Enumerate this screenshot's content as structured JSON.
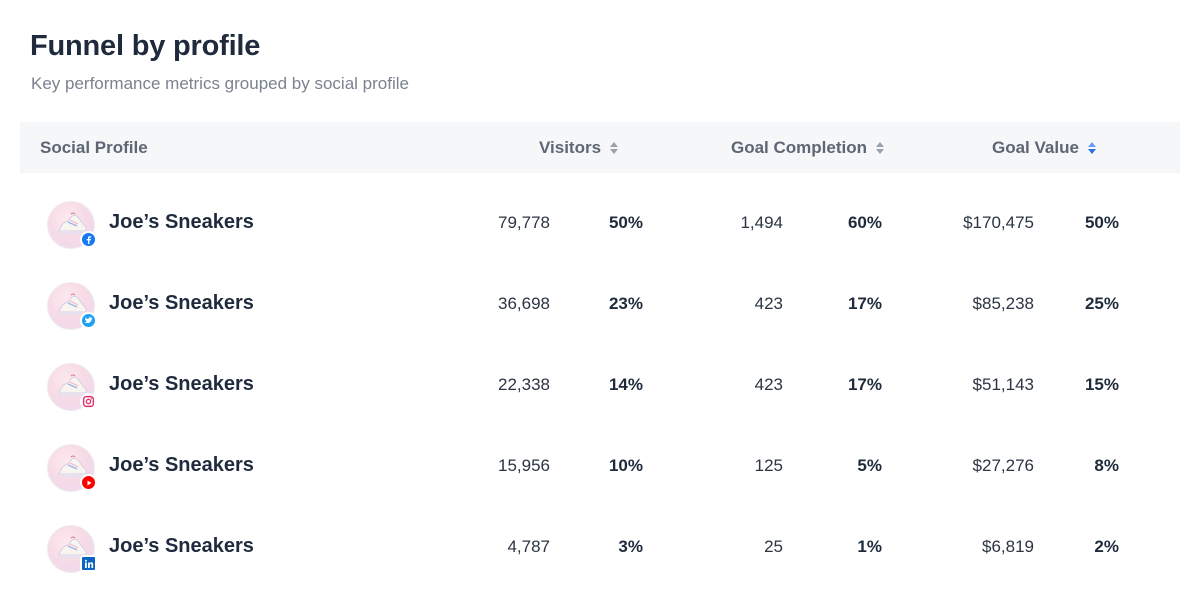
{
  "header": {
    "title": "Funnel by profile",
    "subtitle": "Key performance metrics grouped by social profile"
  },
  "table": {
    "columns": {
      "profile": "Social Profile",
      "visitors": "Visitors",
      "goal_completion": "Goal Completion",
      "goal_value": "Goal Value"
    },
    "sort_active_column": "goal_value",
    "rows": [
      {
        "name": "Joe’s Sneakers",
        "network": "facebook-icon",
        "visitors": "79,778",
        "visitors_pct": "50%",
        "goal": "1,494",
        "goal_pct": "60%",
        "value": "$170,475",
        "value_pct": "50%"
      },
      {
        "name": "Joe’s Sneakers",
        "network": "twitter-icon",
        "visitors": "36,698",
        "visitors_pct": "23%",
        "goal": "423",
        "goal_pct": "17%",
        "value": "$85,238",
        "value_pct": "25%"
      },
      {
        "name": "Joe’s Sneakers",
        "network": "instagram-icon",
        "visitors": "22,338",
        "visitors_pct": "14%",
        "goal": "423",
        "goal_pct": "17%",
        "value": "$51,143",
        "value_pct": "15%"
      },
      {
        "name": "Joe’s Sneakers",
        "network": "youtube-icon",
        "visitors": "15,956",
        "visitors_pct": "10%",
        "goal": "125",
        "goal_pct": "5%",
        "value": "$27,276",
        "value_pct": "8%"
      },
      {
        "name": "Joe’s Sneakers",
        "network": "linkedin-icon",
        "visitors": "4,787",
        "visitors_pct": "3%",
        "goal": "25",
        "goal_pct": "1%",
        "value": "$6,819",
        "value_pct": "2%"
      }
    ]
  },
  "colors": {
    "heading": "#1f2b3d",
    "muted": "#7a8290",
    "header_bg": "#f6f7f9",
    "sort_active": "#3b82f6",
    "facebook": "#1877f2",
    "twitter": "#1da1f2",
    "youtube": "#ff0000",
    "linkedin": "#0a66c2"
  }
}
